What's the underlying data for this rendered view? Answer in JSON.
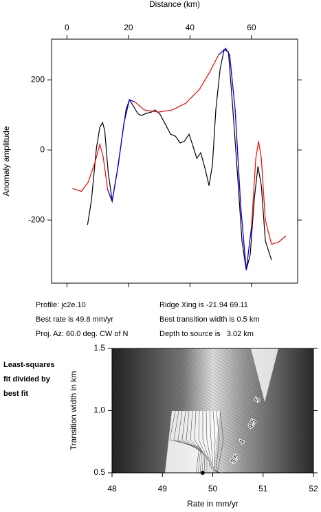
{
  "chart_data": [
    {
      "type": "line",
      "x_label": "Distance (km)",
      "y_label": "Anomaly amplitude",
      "xlim": [
        -5,
        75
      ],
      "ylim": [
        -380,
        316
      ],
      "xticks": [
        0,
        20,
        40,
        60
      ],
      "yticks": [
        -200,
        0,
        200
      ],
      "series": [
        {
          "color": "#000000",
          "x": [
            6.7,
            8,
            9.6,
            10.7,
            11.6,
            12.3,
            13.4,
            14.7,
            16.3,
            17.9,
            19.2,
            20.3,
            21.7,
            23,
            24.1,
            25.7,
            27.5,
            28.6,
            30.1,
            31.9,
            33.7,
            35.3,
            36.8,
            38.2,
            39.7,
            40.8,
            42.2,
            43.5,
            44.9,
            46.2,
            47.3,
            48.4,
            49.8,
            51.1,
            52.5,
            53.8,
            55.4,
            56.9,
            58.3,
            59.6,
            60.9,
            62.1,
            63.2,
            64.5,
            66.5
          ],
          "values": [
            -214,
            -141,
            6,
            65,
            78,
            55,
            -63,
            -145,
            -63,
            35,
            114,
            143,
            124,
            104,
            98,
            104,
            108,
            114,
            104,
            75,
            45,
            39,
            20,
            25,
            45,
            16,
            -24,
            -8,
            -53,
            -102,
            -43,
            114,
            231,
            286,
            280,
            133,
            -63,
            -259,
            -343,
            -298,
            -141,
            -47,
            -102,
            -259,
            -314
          ]
        },
        {
          "color": "#ff0000",
          "x": [
            1.8,
            4.7,
            6.9,
            9.2,
            10.7,
            11.8,
            13.2,
            14.7,
            16.7,
            18.5,
            20.3,
            22.1,
            25.2,
            29.7,
            34.2,
            38.6,
            43.1,
            46.4,
            49.3,
            51.6,
            52.9,
            54.7,
            56.5,
            58.3,
            60,
            61.4,
            62.3,
            63.2,
            64.5,
            66.5,
            68.8,
            71.2
          ],
          "values": [
            -110,
            -118,
            -92,
            -33,
            16,
            -20,
            -112,
            -147,
            -43,
            75,
            143,
            137,
            114,
            108,
            114,
            133,
            173,
            222,
            271,
            290,
            271,
            114,
            -161,
            -343,
            -220,
            -24,
            25,
            -24,
            -200,
            -269,
            -263,
            -245
          ]
        },
        {
          "color": "#0000ff",
          "x": [
            13.2,
            14.7,
            16.7,
            18.5,
            20.3,
            22.1,
            null,
            49.3,
            51.6,
            52.9,
            54.7,
            56.5,
            58.3,
            60
          ],
          "values": [
            -112,
            -147,
            -43,
            75,
            143,
            137,
            null,
            271,
            290,
            271,
            114,
            -161,
            -343,
            -220
          ]
        }
      ]
    },
    {
      "type": "contour",
      "x_label": "Rate in mm/yr",
      "y_label": "Transition width in km",
      "note": [
        "Least-squares",
        "fit divided by",
        "best fit"
      ],
      "xlim": [
        48,
        52
      ],
      "ylim": [
        0.5,
        1.5
      ],
      "xticks": [
        48,
        49,
        50,
        51,
        52
      ],
      "yticks": [
        {
          "value": 0.5,
          "label": "0.5"
        },
        {
          "value": 1.0,
          "label": "1.0"
        },
        {
          "value": 1.5,
          "label": "1.5"
        }
      ],
      "contour_labels": [
        5,
        4.5,
        4,
        3.5
      ],
      "best_fit": {
        "x": 49.8,
        "y": 0.5
      }
    }
  ],
  "info": {
    "profile": "Profile: jc2e.10",
    "rate": "Best rate is 49.8 mm/yr",
    "azimuth": "Proj. Az: 60.0 deg. CW of N",
    "ridge": "Ridge Xing is -21.94 69.11",
    "width": "Best transition width is 0.5 km",
    "depth": "Depth to source is   3.02 km"
  }
}
